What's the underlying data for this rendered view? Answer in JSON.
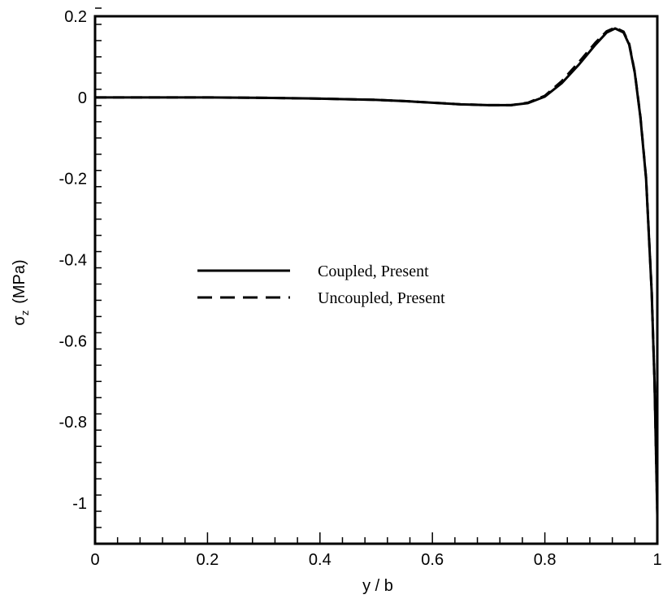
{
  "chart_data": {
    "type": "line",
    "xlabel": "y / b",
    "ylabel": {
      "symbol": "σ",
      "subscript": "z",
      "unit": "(MPa)"
    },
    "xlim": [
      0,
      1
    ],
    "ylim": [
      -1.1,
      0.2
    ],
    "xticks": [
      0,
      0.2,
      0.4,
      0.6,
      0.8,
      1
    ],
    "xtick_labels": [
      "0",
      "0.2",
      "0.4",
      "0.6",
      "0.8",
      "1"
    ],
    "yticks": [
      0.2,
      0,
      -0.2,
      -0.4,
      -0.6,
      -0.8,
      -1
    ],
    "ytick_labels": [
      "0.2",
      "0",
      "-0.2",
      "-0.4",
      "-0.6",
      "-0.8",
      "-1"
    ],
    "grid": false,
    "legend_position": "center-left",
    "series": [
      {
        "name": "Coupled, Present",
        "style": "solid",
        "color": "#000000",
        "x": [
          0,
          0.1,
          0.2,
          0.3,
          0.4,
          0.5,
          0.55,
          0.6,
          0.65,
          0.7,
          0.74,
          0.77,
          0.8,
          0.83,
          0.86,
          0.89,
          0.91,
          0.925,
          0.94,
          0.95,
          0.96,
          0.97,
          0.98,
          0.99,
          0.995,
          1.0
        ],
        "y": [
          0,
          0,
          0,
          -0.001,
          -0.003,
          -0.006,
          -0.009,
          -0.013,
          -0.017,
          -0.019,
          -0.019,
          -0.014,
          0.002,
          0.035,
          0.08,
          0.13,
          0.16,
          0.17,
          0.16,
          0.13,
          0.06,
          -0.05,
          -0.2,
          -0.48,
          -0.7,
          -1.03
        ]
      },
      {
        "name": "Uncoupled, Present",
        "style": "dashed",
        "color": "#000000",
        "x": [
          0,
          0.1,
          0.2,
          0.3,
          0.4,
          0.5,
          0.55,
          0.6,
          0.65,
          0.7,
          0.74,
          0.77,
          0.8,
          0.83,
          0.86,
          0.89,
          0.91,
          0.925,
          0.94,
          0.95,
          0.96,
          0.97,
          0.98,
          0.99,
          0.995,
          1.0
        ],
        "y": [
          0,
          0,
          0,
          -0.001,
          -0.003,
          -0.006,
          -0.009,
          -0.013,
          -0.017,
          -0.019,
          -0.019,
          -0.013,
          0.004,
          0.04,
          0.086,
          0.135,
          0.163,
          0.172,
          0.162,
          0.132,
          0.062,
          -0.048,
          -0.198,
          -0.478,
          -0.698,
          -1.025
        ]
      }
    ]
  }
}
